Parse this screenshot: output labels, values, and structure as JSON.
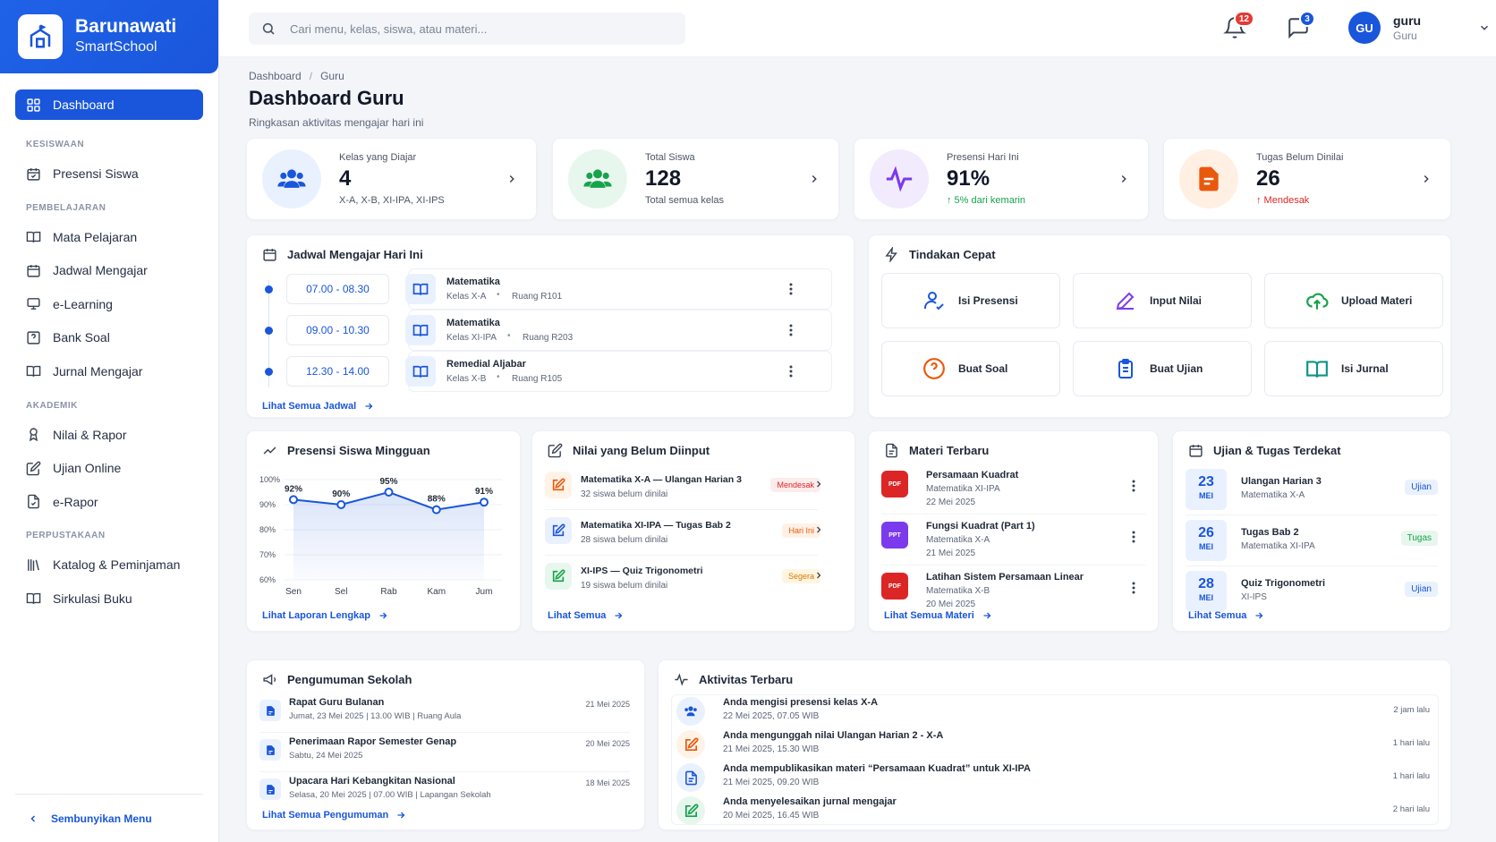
{
  "brand": {
    "name": "Barunawati",
    "sub": "SmartSchool"
  },
  "search": {
    "placeholder": "Cari menu, kelas, siswa, atau materi..."
  },
  "nav": {
    "dashboard": "Dashboard",
    "sec1": "KESISWAAN",
    "presensi": "Presensi Siswa",
    "sec2": "PEMBELAJARAN",
    "mapel": "Mata Pelajaran",
    "jadwal": "Jadwal Mengajar",
    "elearning": "e-Learning",
    "banksoal": "Bank Soal",
    "jurnal": "Jurnal Mengajar",
    "sec3": "AKADEMIK",
    "nilai": "Nilai & Rapor",
    "ujian": "Ujian Online",
    "erapor": "e-Rapor",
    "sec4": "PERPUSTAKAAN",
    "katalog": "Katalog & Peminjaman",
    "sirkulasi": "Sirkulasi Buku",
    "hide": "Sembunyikan Menu"
  },
  "topbar": {
    "notif_count": "12",
    "msg_count": "3",
    "avatar": "GU",
    "user": "guru",
    "role": "Guru"
  },
  "page": {
    "crumb1": "Dashboard",
    "crumb_sep": "/",
    "crumb2": "Guru",
    "title": "Dashboard Guru",
    "subtitle": "Ringkasan aktivitas mengajar hari ini"
  },
  "stats": [
    {
      "label": "Kelas yang Diajar",
      "value": "4",
      "sub": "X-A, X-B, XI-IPA, XI-IPS",
      "color": "#1a56db"
    },
    {
      "label": "Total Siswa",
      "value": "128",
      "sub": "Total semua kelas",
      "color": "#16a34a"
    },
    {
      "label": "Presensi Hari Ini",
      "value": "91%",
      "sub": "↑ 5% dari kemarin",
      "color": "#7c3aed"
    },
    {
      "label": "Tugas Belum Dinilai",
      "value": "26",
      "sub": "↑ Mendesak",
      "color": "#ea580c"
    }
  ],
  "schedule": {
    "title": "Jadwal Mengajar Hari Ini",
    "link": "Lihat Semua Jadwal",
    "rows": [
      {
        "time": "07.00 - 08.30",
        "subject": "Matematika",
        "kelas": "Kelas X-A",
        "room": "Ruang R101"
      },
      {
        "time": "09.00 - 10.30",
        "subject": "Matematika",
        "kelas": "Kelas XI-IPA",
        "room": "Ruang R203"
      },
      {
        "time": "12.30 - 14.00",
        "subject": "Remedial Aljabar",
        "kelas": "Kelas X-B",
        "room": "Ruang R105"
      }
    ]
  },
  "quick": {
    "title": "Tindakan Cepat",
    "items": [
      {
        "label": "Isi Presensi",
        "icon": "user-check-icon",
        "color": "#1a56db"
      },
      {
        "label": "Input Nilai",
        "icon": "pencil-icon",
        "color": "#7c3aed"
      },
      {
        "label": "Upload Materi",
        "icon": "cloud-upload-icon",
        "color": "#16a34a"
      },
      {
        "label": "Buat Soal",
        "icon": "question-icon",
        "color": "#ea580c"
      },
      {
        "label": "Buat Ujian",
        "icon": "clipboard-icon",
        "color": "#1a56db"
      },
      {
        "label": "Isi Jurnal",
        "icon": "book-icon",
        "color": "#0d9488"
      }
    ]
  },
  "chart_data": {
    "type": "line",
    "title": "Presensi Siswa Mingguan",
    "categories": [
      "Sen",
      "Sel",
      "Rab",
      "Kam",
      "Jum"
    ],
    "values": [
      92,
      90,
      95,
      88,
      91
    ],
    "value_labels": [
      "92%",
      "90%",
      "95%",
      "88%",
      "91%"
    ],
    "yticks": [
      "100%",
      "90%",
      "80%",
      "70%",
      "60%"
    ],
    "ylim": [
      60,
      100
    ],
    "color": "#1a56db"
  },
  "attendance": {
    "link": "Lihat Laporan Lengkap"
  },
  "grading": {
    "title": "Nilai yang Belum Diinput",
    "link": "Lihat Semua",
    "rows": [
      {
        "title": "Matematika X-A — Ulangan Harian 3",
        "sub": "32 siswa belum dinilai",
        "tag": "Mendesak",
        "tagbg": "#fdecec",
        "tagfg": "#dc2626",
        "color": "#ea580c",
        "bg": "#fff3e8"
      },
      {
        "title": "Matematika XI-IPA — Tugas Bab 2",
        "sub": "28 siswa belum dinilai",
        "tag": "Hari Ini",
        "tagbg": "#fff1e6",
        "tagfg": "#ea580c",
        "color": "#1a56db",
        "bg": "#eaf1fe"
      },
      {
        "title": "XI-IPS — Quiz Trigonometri",
        "sub": "19 siswa belum dinilai",
        "tag": "Segera",
        "tagbg": "#fff5e0",
        "tagfg": "#d97706",
        "color": "#16a34a",
        "bg": "#e8f7ee"
      }
    ]
  },
  "materials": {
    "title": "Materi Terbaru",
    "link": "Lihat Semua Materi",
    "rows": [
      {
        "title": "Persamaan Kuadrat",
        "kelas": "Matematika XI-IPA",
        "date": "22 Mei 2025",
        "color": "#dc2626",
        "ext": "PDF"
      },
      {
        "title": "Fungsi Kuadrat (Part 1)",
        "kelas": "Matematika X-A",
        "date": "21 Mei 2025",
        "color": "#7c3aed",
        "ext": "PPT"
      },
      {
        "title": "Latihan Sistem Persamaan Linear",
        "kelas": "Matematika X-B",
        "date": "20 Mei 2025",
        "color": "#dc2626",
        "ext": "PDF"
      }
    ]
  },
  "exams": {
    "title": "Ujian & Tugas Terdekat",
    "link": "Lihat Semua",
    "rows": [
      {
        "day": "23",
        "month": "MEI",
        "title": "Ulangan Harian 3",
        "kelas": "Matematika X-A",
        "tag": "Ujian",
        "tagbg": "#eaf1fe",
        "tagfg": "#1a56db"
      },
      {
        "day": "26",
        "month": "MEI",
        "title": "Tugas Bab 2",
        "kelas": "Matematika XI-IPA",
        "tag": "Tugas",
        "tagbg": "#e8f7ee",
        "tagfg": "#16a34a"
      },
      {
        "day": "28",
        "month": "MEI",
        "title": "Quiz Trigonometri",
        "kelas": "XI-IPS",
        "tag": "Ujian",
        "tagbg": "#eaf1fe",
        "tagfg": "#1a56db"
      }
    ]
  },
  "announcements": {
    "title": "Pengumuman Sekolah",
    "link": "Lihat Semua Pengumuman",
    "rows": [
      {
        "title": "Rapat Guru Bulanan",
        "sub": "Jumat, 23 Mei 2025 | 13.00 WIB | Ruang Aula",
        "date": "21 Mei 2025"
      },
      {
        "title": "Penerimaan Rapor Semester Genap",
        "sub": "Sabtu, 24 Mei 2025",
        "date": "20 Mei 2025"
      },
      {
        "title": "Upacara Hari Kebangkitan Nasional",
        "sub": "Selasa, 20 Mei 2025 | 07.00 WIB | Lapangan Sekolah",
        "date": "18 Mei 2025"
      }
    ]
  },
  "activity": {
    "title": "Aktivitas Terbaru",
    "rows": [
      {
        "title": "Anda mengisi presensi kelas X-A",
        "sub": "22 Mei 2025, 07.05 WIB",
        "ago": "2 jam lalu",
        "color": "#1a56db",
        "bg": "#eaf1fe",
        "icon": "users-icon"
      },
      {
        "title": "Anda mengunggah nilai Ulangan Harian 2 - X-A",
        "sub": "21 Mei 2025, 15.30 WIB",
        "ago": "1 hari lalu",
        "color": "#ea580c",
        "bg": "#fff3e8",
        "icon": "edit-icon"
      },
      {
        "title": "Anda mempublikasikan materi “Persamaan Kuadrat” untuk XI-IPA",
        "sub": "21 Mei 2025, 09.20 WIB",
        "ago": "1 hari lalu",
        "color": "#1a56db",
        "bg": "#eaf1fe",
        "icon": "document-icon"
      },
      {
        "title": "Anda menyelesaikan jurnal mengajar",
        "sub": "20 Mei 2025, 16.45 WIB",
        "ago": "2 hari lalu",
        "color": "#16a34a",
        "bg": "#e8f7ee",
        "icon": "check-edit-icon"
      }
    ]
  }
}
